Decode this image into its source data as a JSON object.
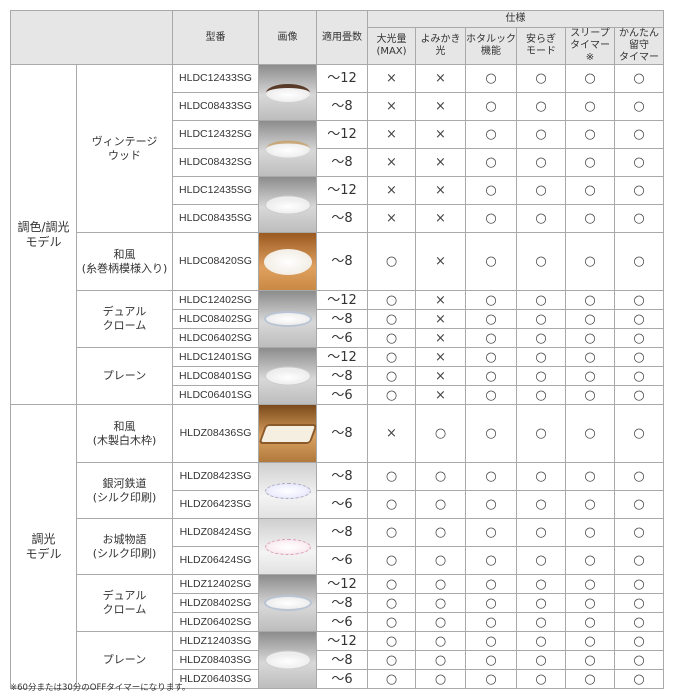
{
  "header": {
    "model": "型番",
    "image": "画像",
    "rooms": "適用畳数",
    "spec": "仕様",
    "specs": [
      "大光量\n(MAX)",
      "よみかき\n光",
      "ホタルック\n機能",
      "安らぎ\nモード",
      "スリープ\nタイマー※",
      "かんたん\n留守\nタイマー"
    ]
  },
  "marks": {
    "yes": "○",
    "no": "×"
  },
  "sections": [
    {
      "label": "調色/調光\nモデル",
      "groups": [
        {
          "label": "ヴィンテージ\nウッド",
          "blocks": [
            {
              "image": "brown-rim-ceiling-light",
              "bg": "gray",
              "lamp": "brown",
              "models": [
                {
                  "model": "HLDC12433SG",
                  "rooms": "〜12",
                  "specs": [
                    "no",
                    "no",
                    "yes",
                    "yes",
                    "yes",
                    "yes"
                  ]
                },
                {
                  "model": "HLDC08433SG",
                  "rooms": "〜8",
                  "specs": [
                    "no",
                    "no",
                    "yes",
                    "yes",
                    "yes",
                    "yes"
                  ]
                }
              ]
            },
            {
              "image": "beige-rim-ceiling-light",
              "bg": "gray",
              "lamp": "beige",
              "models": [
                {
                  "model": "HLDC12432SG",
                  "rooms": "〜12",
                  "specs": [
                    "no",
                    "no",
                    "yes",
                    "yes",
                    "yes",
                    "yes"
                  ]
                },
                {
                  "model": "HLDC08432SG",
                  "rooms": "〜8",
                  "specs": [
                    "no",
                    "no",
                    "yes",
                    "yes",
                    "yes",
                    "yes"
                  ]
                }
              ]
            },
            {
              "image": "white-rim-ceiling-light",
              "bg": "gray",
              "lamp": "clear",
              "models": [
                {
                  "model": "HLDC12435SG",
                  "rooms": "〜12",
                  "specs": [
                    "no",
                    "no",
                    "yes",
                    "yes",
                    "yes",
                    "yes"
                  ]
                },
                {
                  "model": "HLDC08435SG",
                  "rooms": "〜8",
                  "specs": [
                    "no",
                    "no",
                    "yes",
                    "yes",
                    "yes",
                    "yes"
                  ]
                }
              ]
            }
          ]
        },
        {
          "label": "和風\n(糸巻柄模様入り)",
          "blocks": [
            {
              "image": "japanese-round-ceiling-light",
              "bg": "amber",
              "lamp": "big",
              "models": [
                {
                  "model": "HLDC08420SG",
                  "rooms": "〜8",
                  "specs": [
                    "yes",
                    "no",
                    "yes",
                    "yes",
                    "yes",
                    "yes"
                  ]
                }
              ]
            }
          ]
        },
        {
          "label": "デュアル\nクローム",
          "blocks": [
            {
              "image": "chrome-ceiling-light",
              "bg": "gray",
              "lamp": "chrome",
              "models": [
                {
                  "model": "HLDC12402SG",
                  "rooms": "〜12",
                  "specs": [
                    "yes",
                    "no",
                    "yes",
                    "yes",
                    "yes",
                    "yes"
                  ]
                },
                {
                  "model": "HLDC08402SG",
                  "rooms": "〜8",
                  "specs": [
                    "yes",
                    "no",
                    "yes",
                    "yes",
                    "yes",
                    "yes"
                  ]
                },
                {
                  "model": "HLDC06402SG",
                  "rooms": "〜6",
                  "specs": [
                    "yes",
                    "no",
                    "yes",
                    "yes",
                    "yes",
                    "yes"
                  ]
                }
              ]
            }
          ]
        },
        {
          "label": "プレーン",
          "blocks": [
            {
              "image": "plain-ceiling-light",
              "bg": "gray",
              "lamp": "clear",
              "models": [
                {
                  "model": "HLDC12401SG",
                  "rooms": "〜12",
                  "specs": [
                    "yes",
                    "no",
                    "yes",
                    "yes",
                    "yes",
                    "yes"
                  ]
                },
                {
                  "model": "HLDC08401SG",
                  "rooms": "〜8",
                  "specs": [
                    "yes",
                    "no",
                    "yes",
                    "yes",
                    "yes",
                    "yes"
                  ]
                },
                {
                  "model": "HLDC06401SG",
                  "rooms": "〜6",
                  "specs": [
                    "yes",
                    "no",
                    "yes",
                    "yes",
                    "yes",
                    "yes"
                  ]
                }
              ]
            }
          ]
        }
      ]
    },
    {
      "label": "調光\nモデル",
      "groups": [
        {
          "label": "和風\n(木製白木枠)",
          "blocks": [
            {
              "image": "square-wood-frame-light",
              "bg": "wood",
              "lamp": "square",
              "models": [
                {
                  "model": "HLDZ08436SG",
                  "rooms": "〜8",
                  "specs": [
                    "no",
                    "yes",
                    "yes",
                    "yes",
                    "yes",
                    "yes"
                  ]
                }
              ]
            }
          ]
        },
        {
          "label": "銀河鉄道\n(シルク印刷)",
          "blocks": [
            {
              "image": "printed-pattern-ceiling-light",
              "bg": "light",
              "lamp": "pattern",
              "models": [
                {
                  "model": "HLDZ08423SG",
                  "rooms": "〜8",
                  "specs": [
                    "yes",
                    "yes",
                    "yes",
                    "yes",
                    "yes",
                    "yes"
                  ]
                },
                {
                  "model": "HLDZ06423SG",
                  "rooms": "〜6",
                  "specs": [
                    "yes",
                    "yes",
                    "yes",
                    "yes",
                    "yes",
                    "yes"
                  ]
                }
              ]
            }
          ]
        },
        {
          "label": "お城物語\n(シルク印刷)",
          "blocks": [
            {
              "image": "castle-print-ceiling-light",
              "bg": "light",
              "lamp": "pink",
              "models": [
                {
                  "model": "HLDZ08424SG",
                  "rooms": "〜8",
                  "specs": [
                    "yes",
                    "yes",
                    "yes",
                    "yes",
                    "yes",
                    "yes"
                  ]
                },
                {
                  "model": "HLDZ06424SG",
                  "rooms": "〜6",
                  "specs": [
                    "yes",
                    "yes",
                    "yes",
                    "yes",
                    "yes",
                    "yes"
                  ]
                }
              ]
            }
          ]
        },
        {
          "label": "デュアル\nクローム",
          "blocks": [
            {
              "image": "chrome-ceiling-light",
              "bg": "gray",
              "lamp": "chrome",
              "models": [
                {
                  "model": "HLDZ12402SG",
                  "rooms": "〜12",
                  "specs": [
                    "yes",
                    "yes",
                    "yes",
                    "yes",
                    "yes",
                    "yes"
                  ]
                },
                {
                  "model": "HLDZ08402SG",
                  "rooms": "〜8",
                  "specs": [
                    "yes",
                    "yes",
                    "yes",
                    "yes",
                    "yes",
                    "yes"
                  ]
                },
                {
                  "model": "HLDZ06402SG",
                  "rooms": "〜6",
                  "specs": [
                    "yes",
                    "yes",
                    "yes",
                    "yes",
                    "yes",
                    "yes"
                  ]
                }
              ]
            }
          ]
        },
        {
          "label": "プレーン",
          "blocks": [
            {
              "image": "plain-ceiling-light",
              "bg": "gray",
              "lamp": "clear",
              "models": [
                {
                  "model": "HLDZ12403SG",
                  "rooms": "〜12",
                  "specs": [
                    "yes",
                    "yes",
                    "yes",
                    "yes",
                    "yes",
                    "yes"
                  ]
                },
                {
                  "model": "HLDZ08403SG",
                  "rooms": "〜8",
                  "specs": [
                    "yes",
                    "yes",
                    "yes",
                    "yes",
                    "yes",
                    "yes"
                  ]
                },
                {
                  "model": "HLDZ06403SG",
                  "rooms": "〜6",
                  "specs": [
                    "yes",
                    "yes",
                    "yes",
                    "yes",
                    "yes",
                    "yes"
                  ]
                }
              ]
            }
          ]
        }
      ]
    }
  ],
  "footnote": "※60分または30分のOFFタイマーになります。"
}
